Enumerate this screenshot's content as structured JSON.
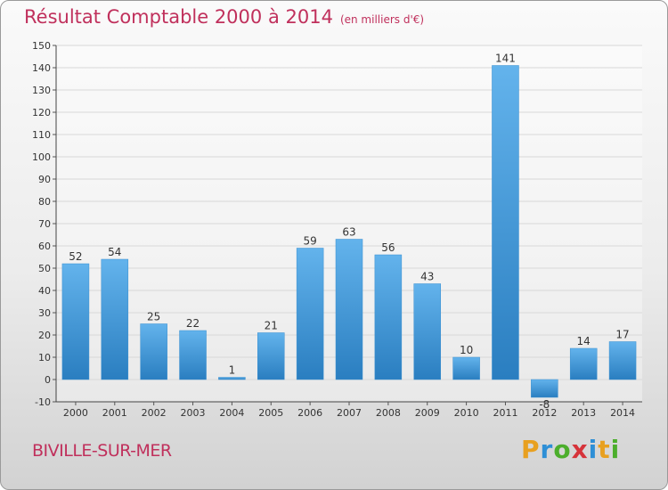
{
  "title": "Résultat Comptable 2000 à 2014",
  "subtitle": "(en milliers d'€)",
  "commune": "BIVILLE-SUR-MER",
  "logo": {
    "text": "Proxiti",
    "letters": [
      {
        "ch": "P",
        "color": "#e8a020"
      },
      {
        "ch": "r",
        "color": "#2e8fd6"
      },
      {
        "ch": "o",
        "color": "#4cae2c"
      },
      {
        "ch": "x",
        "color": "#d6333a"
      },
      {
        "ch": "i",
        "color": "#2e8fd6"
      },
      {
        "ch": "t",
        "color": "#e8a020"
      },
      {
        "ch": "i",
        "color": "#4cae2c"
      }
    ]
  },
  "colors": {
    "title": "#c0305c",
    "bar_top": "#63b3ec",
    "bar_bottom": "#2a7ec0",
    "grid": "#d8d8d8"
  },
  "chart_data": {
    "type": "bar",
    "title": "Résultat Comptable 2000 à 2014",
    "xlabel": "",
    "ylabel": "",
    "categories": [
      "2000",
      "2001",
      "2002",
      "2003",
      "2004",
      "2005",
      "2006",
      "2007",
      "2008",
      "2009",
      "2010",
      "2011",
      "2012",
      "2013",
      "2014"
    ],
    "values": [
      52,
      54,
      25,
      22,
      1,
      21,
      59,
      63,
      56,
      43,
      10,
      141,
      -8,
      14,
      17
    ],
    "labels": [
      "52",
      "54",
      "25",
      "22",
      "1",
      "21",
      "59",
      "63",
      "56",
      "43",
      "10",
      "141",
      "-8",
      "14",
      "17"
    ],
    "ylim": [
      -10,
      150
    ],
    "yticks": [
      -10,
      0,
      10,
      20,
      30,
      40,
      50,
      60,
      70,
      80,
      90,
      100,
      110,
      120,
      130,
      140,
      150
    ],
    "grid": true,
    "legend": false
  }
}
